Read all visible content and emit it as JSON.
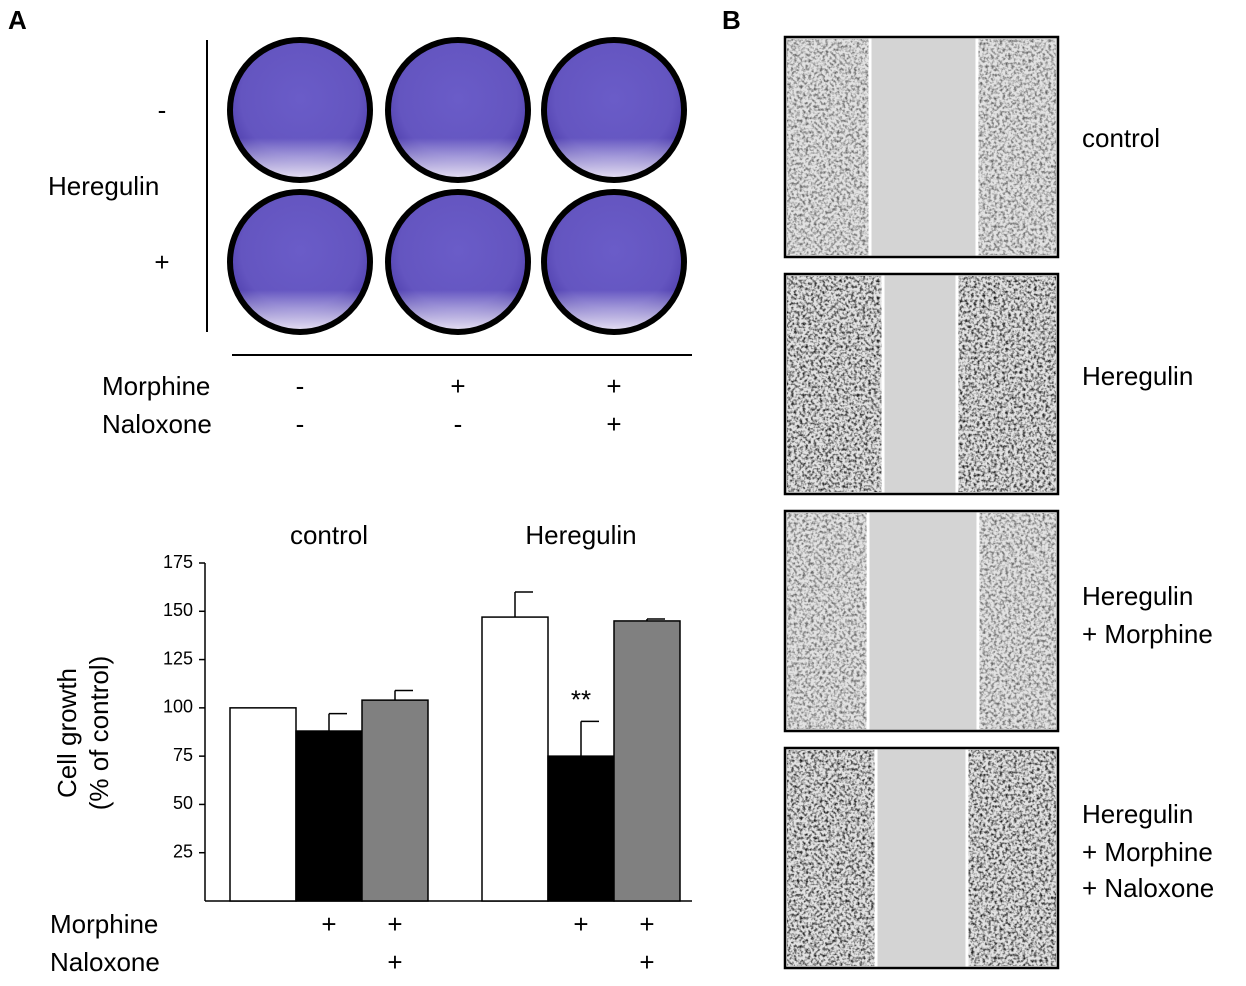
{
  "panel_labels": [
    "A",
    "B"
  ],
  "plates": {
    "row_title": "Heregulin",
    "row_labels": [
      "-",
      "+"
    ],
    "conditions": [
      {
        "label": "Morphine",
        "marks": [
          "-",
          "+",
          "+"
        ]
      },
      {
        "label": "Naloxone",
        "marks": [
          "-",
          "-",
          "+"
        ]
      }
    ]
  },
  "chart_data": {
    "type": "bar",
    "categories": [
      "control",
      "Heregulin"
    ],
    "series": [
      {
        "color": "#ffffff",
        "values": [
          100,
          147
        ],
        "errors": [
          null,
          13
        ]
      },
      {
        "color": "#000000",
        "values": [
          88,
          75
        ],
        "errors": [
          9,
          18
        ]
      },
      {
        "color": "#808080",
        "values": [
          104,
          145
        ],
        "errors": [
          5,
          1
        ]
      }
    ],
    "y_label": [
      "Cell growth",
      "(% of control)"
    ],
    "annotations": [
      "**"
    ],
    "ylim": [
      0,
      175
    ],
    "yticks": [
      25,
      50,
      75,
      100,
      125,
      150,
      175
    ],
    "treatments": [
      {
        "label": "Morphine",
        "marks": [
          null,
          "+",
          "+",
          null,
          "+",
          "+"
        ]
      },
      {
        "label": "Naloxone",
        "marks": [
          null,
          null,
          "+",
          null,
          null,
          "+"
        ]
      }
    ]
  },
  "wound_images": {
    "labels": [
      [
        "control"
      ],
      [
        "Heregulin"
      ],
      [
        "Heregulin",
        "+ Morphine"
      ],
      [
        "Heregulin",
        "+ Morphine",
        "+ Naloxone"
      ]
    ]
  }
}
